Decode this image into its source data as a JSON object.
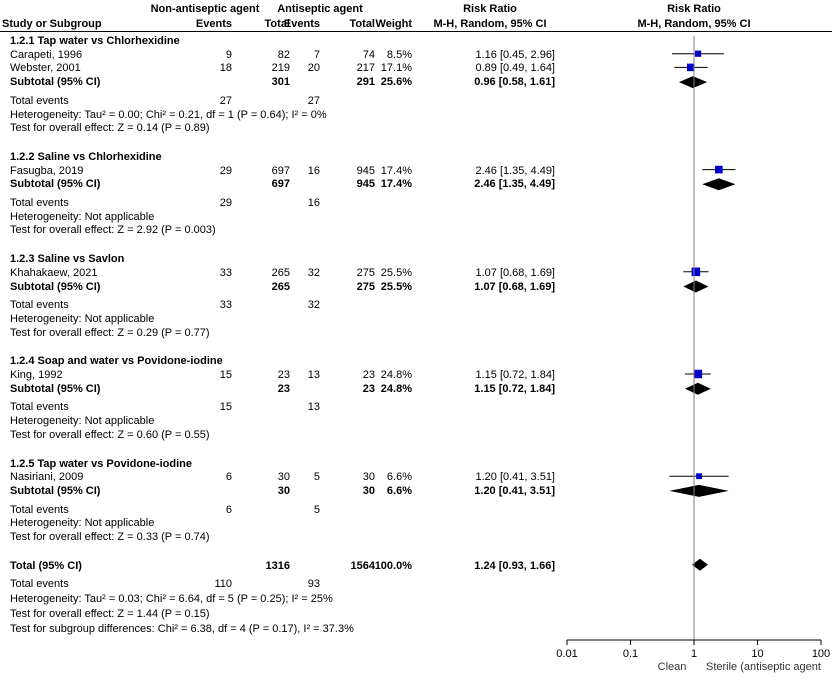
{
  "header": {
    "group1_title": "Non-antiseptic agent",
    "group2_title": "Antiseptic agent",
    "rr_title": "Risk Ratio",
    "plot_rr_title": "Risk Ratio",
    "col_study": "Study or Subgroup",
    "col_events1": "Events",
    "col_total1": "Total",
    "col_events2": "Events",
    "col_total2": "Total",
    "col_weight": "Weight",
    "col_method": "M-H, Random, 95% CI",
    "plot_method": "M-H, Random, 95% CI"
  },
  "subgroups": [
    {
      "title": "1.2.1 Tap water vs Chlorhexidine",
      "studies": [
        {
          "name": "Carapeti, 1996",
          "e1": "9",
          "t1": "82",
          "e2": "7",
          "t2": "74",
          "weight": "8.5%",
          "ci_text": "1.16 [0.45, 2.96]",
          "rr": 1.16,
          "lo": 0.45,
          "hi": 2.96,
          "w": 8.5
        },
        {
          "name": "Webster, 2001",
          "e1": "18",
          "t1": "219",
          "e2": "20",
          "t2": "217",
          "weight": "17.1%",
          "ci_text": "0.89 [0.49, 1.64]",
          "rr": 0.89,
          "lo": 0.49,
          "hi": 1.64,
          "w": 17.1
        }
      ],
      "subtotal": {
        "label": "Subtotal (95% CI)",
        "t1": "301",
        "t2": "291",
        "weight": "25.6%",
        "ci_text": "0.96 [0.58, 1.61]",
        "rr": 0.96,
        "lo": 0.58,
        "hi": 1.61
      },
      "total_events": {
        "label": "Total events",
        "e1": "27",
        "e2": "27"
      },
      "heterogeneity": "Heterogeneity: Tau² = 0.00; Chi² = 0.21, df = 1 (P = 0.64); I² = 0%",
      "overall": "Test for overall effect: Z = 0.14 (P = 0.89)"
    },
    {
      "title": "1.2.2 Saline vs Chlorhexidine",
      "studies": [
        {
          "name": "Fasugba, 2019",
          "e1": "29",
          "t1": "697",
          "e2": "16",
          "t2": "945",
          "weight": "17.4%",
          "ci_text": "2.46 [1.35, 4.49]",
          "rr": 2.46,
          "lo": 1.35,
          "hi": 4.49,
          "w": 17.4
        }
      ],
      "subtotal": {
        "label": "Subtotal (95% CI)",
        "t1": "697",
        "t2": "945",
        "weight": "17.4%",
        "ci_text": "2.46 [1.35, 4.49]",
        "rr": 2.46,
        "lo": 1.35,
        "hi": 4.49
      },
      "total_events": {
        "label": "Total events",
        "e1": "29",
        "e2": "16"
      },
      "heterogeneity": "Heterogeneity: Not applicable",
      "overall": "Test for overall effect: Z = 2.92 (P = 0.003)"
    },
    {
      "title": "1.2.3 Saline vs Savlon",
      "studies": [
        {
          "name": "Khahakaew, 2021",
          "e1": "33",
          "t1": "265",
          "e2": "32",
          "t2": "275",
          "weight": "25.5%",
          "ci_text": "1.07 [0.68, 1.69]",
          "rr": 1.07,
          "lo": 0.68,
          "hi": 1.69,
          "w": 25.5
        }
      ],
      "subtotal": {
        "label": "Subtotal (95% CI)",
        "t1": "265",
        "t2": "275",
        "weight": "25.5%",
        "ci_text": "1.07 [0.68, 1.69]",
        "rr": 1.07,
        "lo": 0.68,
        "hi": 1.69
      },
      "total_events": {
        "label": "Total events",
        "e1": "33",
        "e2": "32"
      },
      "heterogeneity": "Heterogeneity: Not applicable",
      "overall": "Test for overall effect: Z = 0.29 (P = 0.77)"
    },
    {
      "title": "1.2.4 Soap and water vs Povidone-iodine",
      "studies": [
        {
          "name": "King, 1992",
          "e1": "15",
          "t1": "23",
          "e2": "13",
          "t2": "23",
          "weight": "24.8%",
          "ci_text": "1.15 [0.72, 1.84]",
          "rr": 1.15,
          "lo": 0.72,
          "hi": 1.84,
          "w": 24.8
        }
      ],
      "subtotal": {
        "label": "Subtotal (95% CI)",
        "t1": "23",
        "t2": "23",
        "weight": "24.8%",
        "ci_text": "1.15 [0.72, 1.84]",
        "rr": 1.15,
        "lo": 0.72,
        "hi": 1.84
      },
      "total_events": {
        "label": "Total events",
        "e1": "15",
        "e2": "13"
      },
      "heterogeneity": "Heterogeneity: Not applicable",
      "overall": "Test for overall effect: Z = 0.60 (P = 0.55)"
    },
    {
      "title": "1.2.5 Tap water vs Povidone-iodine",
      "studies": [
        {
          "name": "Nasiriani, 2009",
          "e1": "6",
          "t1": "30",
          "e2": "5",
          "t2": "30",
          "weight": "6.6%",
          "ci_text": "1.20 [0.41, 3.51]",
          "rr": 1.2,
          "lo": 0.41,
          "hi": 3.51,
          "w": 6.6
        }
      ],
      "subtotal": {
        "label": "Subtotal (95% CI)",
        "t1": "30",
        "t2": "30",
        "weight": "6.6%",
        "ci_text": "1.20 [0.41, 3.51]",
        "rr": 1.2,
        "lo": 0.41,
        "hi": 3.51
      },
      "total_events": {
        "label": "Total events",
        "e1": "6",
        "e2": "5"
      },
      "heterogeneity": "Heterogeneity: Not applicable",
      "overall": "Test for overall effect: Z = 0.33 (P = 0.74)"
    }
  ],
  "total": {
    "label": "Total (95% CI)",
    "t1": "1316",
    "t2": "1564",
    "weight": "100.0%",
    "ci_text": "1.24 [0.93, 1.66]",
    "rr": 1.24,
    "lo": 0.93,
    "hi": 1.66,
    "events_label": "Total events",
    "e1": "110",
    "e2": "93",
    "heterogeneity": "Heterogeneity: Tau² = 0.03; Chi² = 6.64, df = 5 (P = 0.25); I² = 25%",
    "overall": "Test for overall effect: Z = 1.44 (P = 0.15)",
    "subgroup_diff": "Test for subgroup differences: Chi² = 6.38, df = 4 (P = 0.17), I² = 37.3%"
  },
  "axis": {
    "ticks": [
      {
        "v": 0.01,
        "label": "0.01"
      },
      {
        "v": 0.1,
        "label": "0.1"
      },
      {
        "v": 1,
        "label": "1"
      },
      {
        "v": 10,
        "label": "10"
      },
      {
        "v": 100,
        "label": "100"
      }
    ],
    "left_label": "Clean",
    "right_label": "Sterile (antiseptic agent"
  },
  "colors": {
    "marker": "#0000cc",
    "ink": "#000000",
    "axis": "#808080"
  },
  "chart_data": {
    "type": "forest",
    "x_scale": "log",
    "xlim": [
      0.01,
      100
    ],
    "studies": [
      {
        "name": "Carapeti, 1996",
        "rr": 1.16,
        "lo": 0.45,
        "hi": 2.96,
        "weight": 8.5
      },
      {
        "name": "Webster, 2001",
        "rr": 0.89,
        "lo": 0.49,
        "hi": 1.64,
        "weight": 17.1
      },
      {
        "name": "Fasugba, 2019",
        "rr": 2.46,
        "lo": 1.35,
        "hi": 4.49,
        "weight": 17.4
      },
      {
        "name": "Khahakaew, 2021",
        "rr": 1.07,
        "lo": 0.68,
        "hi": 1.69,
        "weight": 25.5
      },
      {
        "name": "King, 1992",
        "rr": 1.15,
        "lo": 0.72,
        "hi": 1.84,
        "weight": 24.8
      },
      {
        "name": "Nasiriani, 2009",
        "rr": 1.2,
        "lo": 0.41,
        "hi": 3.51,
        "weight": 6.6
      }
    ],
    "subtotals": [
      {
        "rr": 0.96,
        "lo": 0.58,
        "hi": 1.61
      },
      {
        "rr": 2.46,
        "lo": 1.35,
        "hi": 4.49
      },
      {
        "rr": 1.07,
        "lo": 0.68,
        "hi": 1.69
      },
      {
        "rr": 1.15,
        "lo": 0.72,
        "hi": 1.84
      },
      {
        "rr": 1.2,
        "lo": 0.41,
        "hi": 3.51
      }
    ],
    "overall": {
      "rr": 1.24,
      "lo": 0.93,
      "hi": 1.66
    }
  }
}
